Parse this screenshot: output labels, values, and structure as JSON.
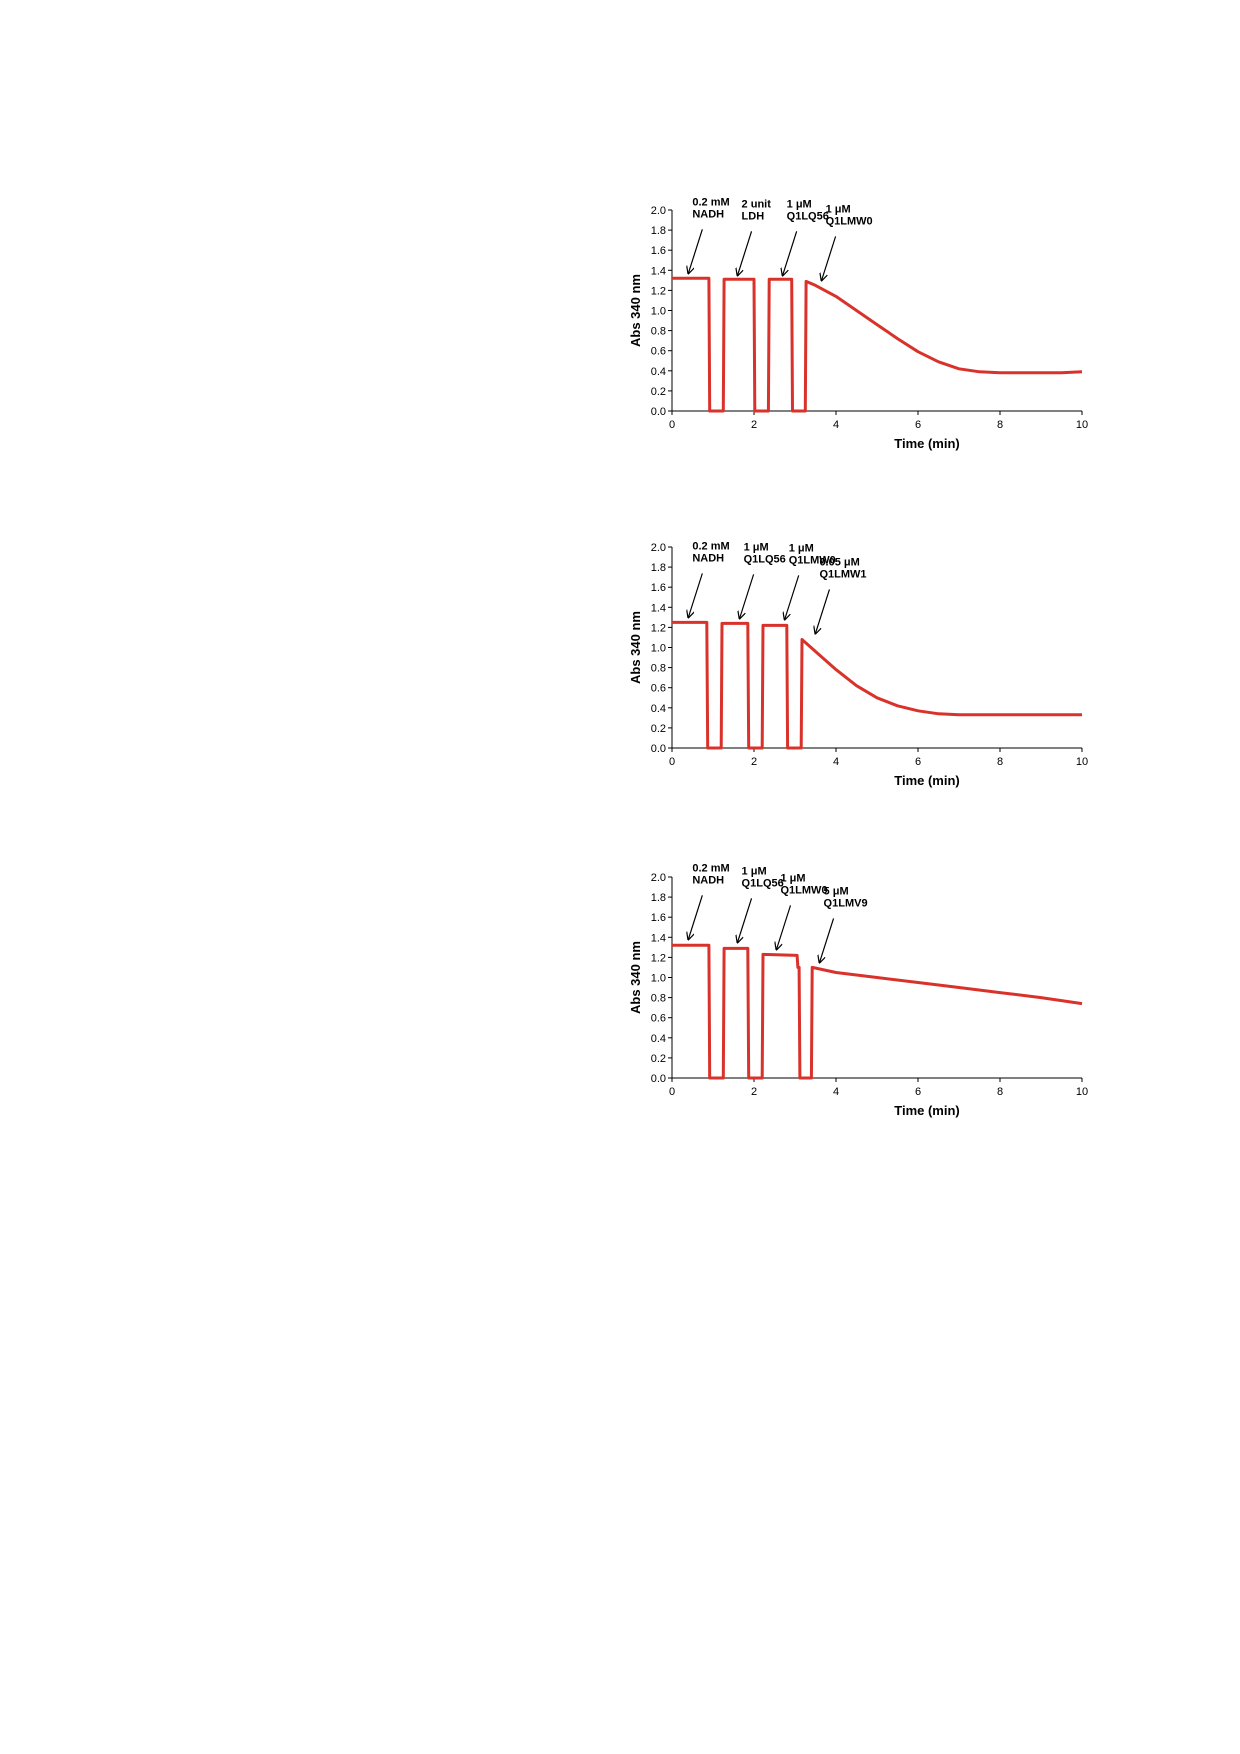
{
  "chart_data": [
    {
      "type": "line",
      "xlabel": "Time  (min)",
      "ylabel": "Abs 340 nm",
      "xlim": [
        0,
        10
      ],
      "ylim": [
        0,
        2.0
      ],
      "xticks": [
        "0",
        "2",
        "4",
        "6",
        "8",
        "10"
      ],
      "yticks": [
        "0.0",
        "0.2",
        "0.4",
        "0.6",
        "0.8",
        "1.0",
        "1.2",
        "1.4",
        "1.6",
        "1.8",
        "2.0"
      ],
      "grid": false,
      "color": "#d9322b",
      "series": [
        {
          "x": [
            0,
            0.9,
            0.92,
            1.25,
            1.27,
            2.0,
            2.02,
            2.35,
            2.37,
            2.92,
            2.94,
            3.25,
            3.27,
            3.5,
            4.0,
            4.5,
            5.0,
            5.5,
            6.0,
            6.5,
            7.0,
            7.5,
            8.0,
            8.5,
            9.0,
            9.5,
            10.0
          ],
          "y": [
            1.32,
            1.32,
            0.0,
            0.0,
            1.31,
            1.31,
            0.0,
            0.0,
            1.31,
            1.31,
            0.0,
            0.0,
            1.29,
            1.25,
            1.14,
            1.0,
            0.86,
            0.72,
            0.59,
            0.49,
            0.42,
            0.39,
            0.38,
            0.38,
            0.38,
            0.38,
            0.39
          ]
        }
      ],
      "annotations": [
        {
          "lines": [
            "0.2 mM",
            "NADH"
          ],
          "point": [
            0.35,
            1.33
          ]
        },
        {
          "lines": [
            "2 unit",
            "LDH"
          ],
          "point": [
            1.55,
            1.31
          ]
        },
        {
          "lines": [
            "1 μM",
            "Q1LQ56"
          ],
          "point": [
            2.65,
            1.31
          ]
        },
        {
          "lines": [
            "1 μM",
            "Q1LMW0"
          ],
          "point": [
            3.6,
            1.26
          ]
        }
      ]
    },
    {
      "type": "line",
      "xlabel": "Time  (min)",
      "ylabel": "Abs 340 nm",
      "xlim": [
        0,
        10
      ],
      "ylim": [
        0,
        2.0
      ],
      "xticks": [
        "0",
        "2",
        "4",
        "6",
        "8",
        "10"
      ],
      "yticks": [
        "0.0",
        "0.2",
        "0.4",
        "0.6",
        "0.8",
        "1.0",
        "1.2",
        "1.4",
        "1.6",
        "1.8",
        "2.0"
      ],
      "grid": false,
      "color": "#d9322b",
      "series": [
        {
          "x": [
            0,
            0.85,
            0.87,
            1.2,
            1.22,
            1.85,
            1.87,
            2.2,
            2.22,
            2.8,
            2.82,
            3.15,
            3.17,
            3.5,
            4.0,
            4.5,
            5.0,
            5.5,
            6.0,
            6.5,
            7.0,
            8.0,
            9.0,
            10.0
          ],
          "y": [
            1.25,
            1.25,
            0.0,
            0.0,
            1.24,
            1.24,
            0.0,
            0.0,
            1.22,
            1.22,
            0.0,
            0.0,
            1.08,
            0.96,
            0.78,
            0.62,
            0.5,
            0.42,
            0.37,
            0.34,
            0.33,
            0.33,
            0.33,
            0.33
          ]
        }
      ],
      "annotations": [
        {
          "lines": [
            "0.2 mM",
            "NADH"
          ],
          "point": [
            0.35,
            1.26
          ]
        },
        {
          "lines": [
            "1 μM",
            "Q1LQ56"
          ],
          "point": [
            1.6,
            1.25
          ]
        },
        {
          "lines": [
            "1 μM",
            "Q1LMW0"
          ],
          "point": [
            2.7,
            1.24
          ]
        },
        {
          "lines": [
            "0.05 μM",
            "Q1LMW1"
          ],
          "point": [
            3.45,
            1.1
          ]
        }
      ]
    },
    {
      "type": "line",
      "xlabel": "Time  (min)",
      "ylabel": "Abs 340 nm",
      "xlim": [
        0,
        10
      ],
      "ylim": [
        0,
        2.0
      ],
      "xticks": [
        "0",
        "2",
        "4",
        "6",
        "8",
        "10"
      ],
      "yticks": [
        "0.0",
        "0.2",
        "0.4",
        "0.6",
        "0.8",
        "1.0",
        "1.2",
        "1.4",
        "1.6",
        "1.8",
        "2.0"
      ],
      "grid": false,
      "color": "#d9322b",
      "series": [
        {
          "x": [
            0,
            0.9,
            0.92,
            1.25,
            1.27,
            1.85,
            1.87,
            2.2,
            2.22,
            3.05,
            3.07,
            3.1,
            3.12,
            3.4,
            3.42,
            4.0,
            5.0,
            6.0,
            7.0,
            8.0,
            9.0,
            10.0
          ],
          "y": [
            1.32,
            1.32,
            0.0,
            0.0,
            1.29,
            1.29,
            0.0,
            0.0,
            1.23,
            1.22,
            1.1,
            1.1,
            0.0,
            0.0,
            1.1,
            1.05,
            1.0,
            0.95,
            0.9,
            0.85,
            0.8,
            0.74
          ]
        }
      ],
      "annotations": [
        {
          "lines": [
            "0.2 mM",
            "NADH"
          ],
          "point": [
            0.35,
            1.34
          ]
        },
        {
          "lines": [
            "1 μM",
            "Q1LQ56"
          ],
          "point": [
            1.55,
            1.31
          ]
        },
        {
          "lines": [
            "1 μM",
            "Q1LMW0"
          ],
          "point": [
            2.5,
            1.24
          ]
        },
        {
          "lines": [
            "5 μM",
            "Q1LMV9"
          ],
          "point": [
            3.55,
            1.11
          ]
        }
      ]
    }
  ]
}
